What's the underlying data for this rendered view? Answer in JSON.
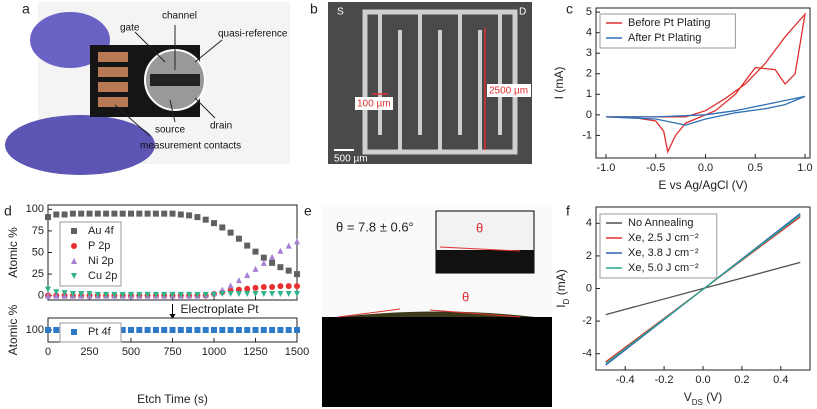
{
  "figure": {
    "panel_letters": [
      "a",
      "b",
      "c",
      "d",
      "e",
      "f"
    ],
    "photo_a_labels": [
      "gate",
      "channel",
      "quasi-reference",
      "drain",
      "source",
      "measurement contacts"
    ],
    "photo_b_labels": [
      "S",
      "D",
      "100 µm",
      "2500 µm",
      "500 µm"
    ],
    "photo_e_labels": [
      "θ = 7.8 ± 0.6°",
      "θ",
      "θ"
    ]
  },
  "chart_data": [
    {
      "type": "line",
      "xlabel": "E vs Ag/AgCl (V)",
      "ylabel": "I (mA)",
      "legend": "upper left",
      "xlim": [
        -1.1,
        1.05
      ],
      "ylim": [
        -2.1,
        5.2
      ],
      "xticks": [
        {
          "value": -1,
          "label": "-1.0"
        },
        {
          "value": -0.5,
          "label": "-0.5"
        },
        {
          "value": 0,
          "label": "0.0"
        },
        {
          "value": 0.5,
          "label": "0.5"
        },
        {
          "value": 1,
          "label": "1.0"
        }
      ],
      "yticks": [
        -1,
        0,
        1,
        2,
        3,
        4,
        5
      ],
      "series": [
        {
          "name": "Before Pt Plating",
          "color": "#e03030",
          "x": [
            -1,
            -0.5,
            -0.2,
            0,
            0.2,
            0.4,
            0.6,
            0.8,
            1.0,
            0.9,
            0.8,
            0.7,
            0.5,
            0.3,
            0.1,
            -0.1,
            -0.2,
            -0.3,
            -0.38,
            -0.42,
            -0.5,
            -0.7,
            -1.0
          ],
          "values": [
            -0.1,
            -0.1,
            -0.1,
            0.2,
            0.8,
            1.5,
            2.5,
            3.8,
            4.9,
            2.0,
            1.5,
            2.2,
            2.3,
            1.0,
            0.2,
            -0.2,
            -0.4,
            -1.0,
            -1.8,
            -0.8,
            -0.3,
            -0.15,
            -0.1
          ]
        },
        {
          "name": "After Pt Plating",
          "color": "#2e6fb4",
          "x": [
            -1,
            -0.5,
            0,
            0.3,
            0.6,
            0.8,
            1.0,
            0.8,
            0.6,
            0.3,
            0,
            -0.2,
            -0.5,
            -1.0
          ],
          "values": [
            -0.1,
            -0.1,
            0.0,
            0.2,
            0.5,
            0.7,
            0.9,
            0.5,
            0.3,
            0.1,
            -0.2,
            -0.5,
            -0.2,
            -0.1
          ]
        }
      ]
    },
    {
      "type": "scatter",
      "ylabel": "Atomic %",
      "legend": "upper left",
      "xlim": [
        0,
        1500
      ],
      "ylim": [
        -5,
        105
      ],
      "xticks": [
        0,
        250,
        500,
        750,
        1000,
        1250,
        1500
      ],
      "yticks": [
        0,
        25,
        50,
        75,
        100
      ],
      "x": [
        0,
        50,
        100,
        150,
        200,
        250,
        300,
        350,
        400,
        450,
        500,
        550,
        600,
        650,
        700,
        750,
        800,
        850,
        900,
        950,
        1000,
        1050,
        1100,
        1150,
        1200,
        1250,
        1300,
        1350,
        1400,
        1450,
        1500
      ],
      "annotation": "Electroplate Pt",
      "series": [
        {
          "name": "Au 4f",
          "color": "#606060",
          "marker": "square",
          "values": [
            91,
            94,
            94,
            95,
            95,
            95,
            95,
            95,
            95,
            95,
            95,
            95,
            95,
            95,
            95,
            95,
            94,
            93,
            91,
            88,
            84,
            79,
            73,
            66,
            58,
            51,
            44,
            38,
            33,
            29,
            25
          ]
        },
        {
          "name": "P 2p",
          "color": "#e83030",
          "marker": "circle",
          "values": [
            0,
            0,
            0,
            0,
            0,
            0,
            0,
            0,
            0,
            0,
            0,
            0,
            0,
            0,
            0,
            0,
            0,
            0,
            0,
            0,
            2,
            4,
            6,
            7,
            8,
            9,
            10,
            10,
            11,
            11,
            11
          ]
        },
        {
          "name": "Ni 2p",
          "color": "#a77fd6",
          "marker": "triangle",
          "values": [
            0,
            0,
            0,
            0,
            0,
            0,
            0,
            0,
            0,
            0,
            0,
            0,
            0,
            0,
            0,
            0,
            0,
            0,
            0,
            1,
            3,
            7,
            12,
            18,
            24,
            31,
            38,
            45,
            52,
            58,
            63
          ]
        },
        {
          "name": "Cu 2p",
          "color": "#2fb48a",
          "marker": "triangle-down",
          "values": [
            7,
            4,
            3,
            2,
            2,
            2,
            1,
            1,
            1,
            1,
            1,
            1,
            1,
            1,
            1,
            1,
            1,
            1,
            1,
            1,
            1,
            2,
            2,
            2,
            2,
            2,
            2,
            2,
            2,
            2,
            2
          ]
        }
      ]
    },
    {
      "type": "scatter",
      "ylabel": "Atomic %",
      "xlabel": "Etch Time (s)",
      "legend": "lower left",
      "xlim": [
        0,
        1500
      ],
      "ylim": [
        92,
        108
      ],
      "xticks": [
        0,
        250,
        500,
        750,
        1000,
        1250,
        1500
      ],
      "yticks": [
        100
      ],
      "x": [
        0,
        50,
        100,
        150,
        200,
        250,
        300,
        350,
        400,
        450,
        500,
        550,
        600,
        650,
        700,
        750,
        800,
        850,
        900,
        950,
        1000,
        1050,
        1100,
        1150,
        1200,
        1250,
        1300,
        1350,
        1400,
        1450,
        1500
      ],
      "series": [
        {
          "name": "Pt 4f",
          "color": "#2e78c8",
          "marker": "square",
          "values": [
            100,
            100,
            100,
            100,
            100,
            100,
            100,
            100,
            100,
            100,
            100,
            100,
            100,
            100,
            100,
            100,
            100,
            100,
            100,
            100,
            100,
            100,
            100,
            100,
            100,
            100,
            100,
            100,
            100,
            100,
            100
          ]
        }
      ]
    },
    {
      "type": "line",
      "xlabel": "V",
      "xlabel_sub": "DS",
      "xlabel_unit": " (V)",
      "ylabel": "I",
      "ylabel_sub": "D",
      "ylabel_unit": " (mA)",
      "legend": "upper left",
      "xlim": [
        -0.55,
        0.55
      ],
      "ylim": [
        -5,
        5
      ],
      "xticks": [
        -0.4,
        -0.2,
        {
          "value": 0,
          "label": "0.0"
        },
        0.2,
        0.4
      ],
      "yticks": [
        -4,
        -2,
        0,
        2,
        4
      ],
      "series": [
        {
          "name": "No Annealing",
          "color": "#505050",
          "x": [
            -0.5,
            0.5
          ],
          "values": [
            -1.6,
            1.6
          ]
        },
        {
          "name": "Xe, 2.5 J cm⁻²",
          "color": "#e03030",
          "x": [
            -0.5,
            0.5
          ],
          "values": [
            -4.5,
            4.4
          ]
        },
        {
          "name": "Xe, 3.8 J cm⁻²",
          "color": "#2e5fb4",
          "x": [
            -0.5,
            0.5
          ],
          "values": [
            -4.7,
            4.6
          ]
        },
        {
          "name": "Xe, 5.0 J cm⁻²",
          "color": "#2aa88a",
          "x": [
            -0.5,
            0.5
          ],
          "values": [
            -4.6,
            4.5
          ]
        }
      ]
    }
  ]
}
